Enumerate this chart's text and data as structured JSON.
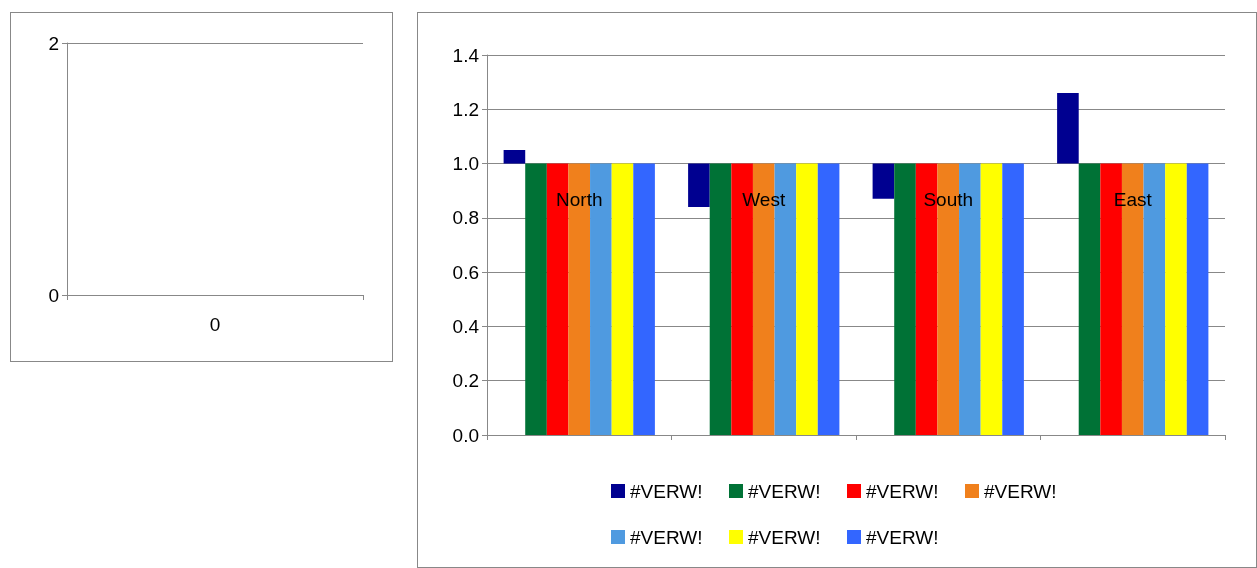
{
  "chart_data": [
    {
      "type": "bar",
      "categories": [
        "0"
      ],
      "values": [
        null
      ],
      "ylim": [
        0,
        2
      ],
      "yticks": [
        0,
        2
      ],
      "grid": "y",
      "legend": false
    },
    {
      "type": "bar",
      "categories": [
        "North",
        "West",
        "South",
        "East"
      ],
      "ylim": [
        0,
        1.4
      ],
      "yticks": [
        {
          "value": 0,
          "label": "0.0"
        },
        0.2,
        0.4,
        0.6,
        0.8,
        {
          "value": 1,
          "label": "1.0"
        },
        1.2,
        1.4
      ],
      "grid": "y",
      "legend": "bottom",
      "series": [
        {
          "name": "#VERW!",
          "color": "#000090",
          "values": [
            0.05,
            -0.16,
            -0.13,
            0.26
          ],
          "base": [
            1,
            1,
            1,
            1
          ]
        },
        {
          "name": "#VERW!",
          "color": "#007236",
          "values": [
            1,
            1,
            1,
            1
          ]
        },
        {
          "name": "#VERW!",
          "color": "#ff0000",
          "values": [
            1,
            1,
            1,
            1
          ]
        },
        {
          "name": "#VERW!",
          "color": "#f0801c",
          "values": [
            1,
            1,
            1,
            1
          ]
        },
        {
          "name": "#VERW!",
          "color": "#4f9ae0",
          "values": [
            1,
            1,
            1,
            1
          ]
        },
        {
          "name": "#VERW!",
          "color": "#ffff00",
          "values": [
            1,
            1,
            1,
            1
          ]
        },
        {
          "name": "#VERW!",
          "color": "#3366ff",
          "values": [
            1,
            1,
            1,
            1
          ]
        }
      ]
    }
  ]
}
